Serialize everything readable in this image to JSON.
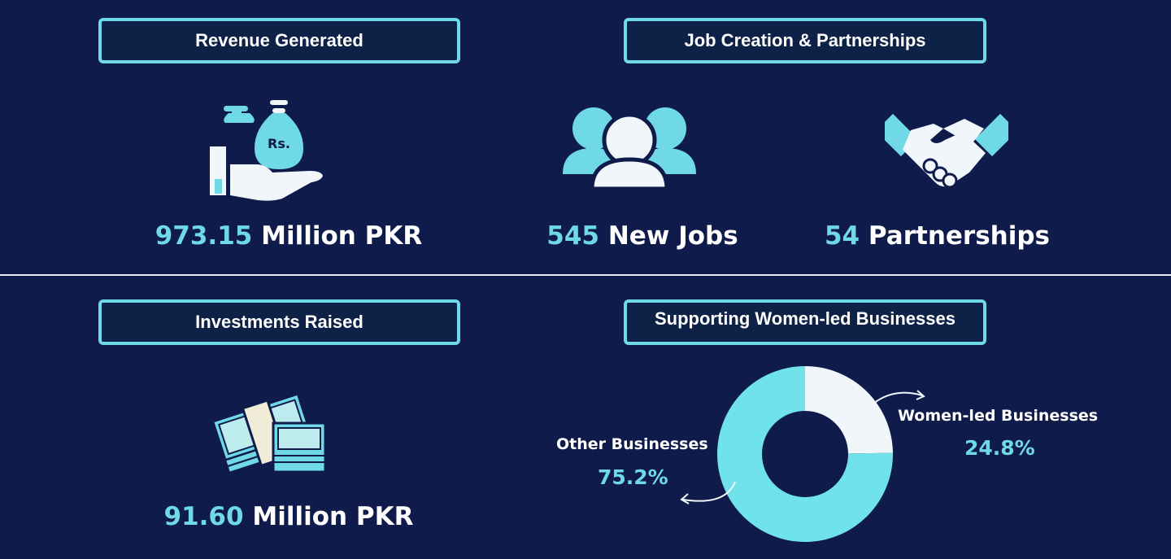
{
  "sections": {
    "revenue": {
      "title": "Revenue Generated",
      "value": "973.15",
      "unit": "Million PKR",
      "icon_text": "Rs."
    },
    "jobs": {
      "title": "Job Creation & Partnerships"
    },
    "new_jobs": {
      "value": "545",
      "unit": "New Jobs"
    },
    "partnerships": {
      "value": "54",
      "unit": "Partnerships"
    },
    "investments": {
      "title": "Investments Raised",
      "value": "91.60",
      "unit": "Million PKR"
    },
    "women": {
      "title": "Supporting Women-led Businesses"
    }
  },
  "colors": {
    "background": "#0f1b4a",
    "accent": "#6fd9e6",
    "light": "#f1f6fb"
  },
  "icons": [
    "money-bag-hand-icon",
    "people-group-icon",
    "handshake-icon",
    "cash-stack-icon"
  ],
  "chart_data": {
    "type": "pie",
    "donut": true,
    "categories": [
      "Women-led Businesses",
      "Other Businesses"
    ],
    "values": [
      24.8,
      75.2
    ],
    "value_labels": [
      "24.8%",
      "75.2%"
    ],
    "colors": [
      "#f1f6fb",
      "#6fe2ea"
    ]
  }
}
